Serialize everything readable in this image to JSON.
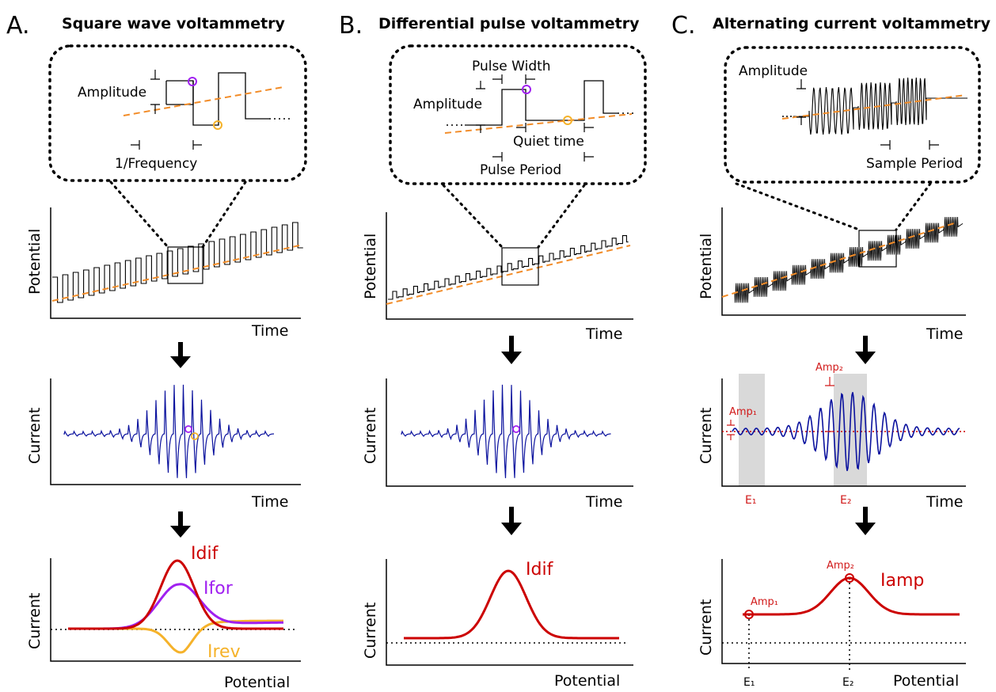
{
  "colors": {
    "axis": "#000000",
    "ramp": "#f28c28",
    "current_trace": "#0b129e",
    "i_dif": "#cc0000",
    "i_for": "#a020f0",
    "i_rev": "#f5b22a",
    "annotation": "#d11a1a",
    "shade": "#d9d9d9"
  },
  "panels": {
    "a": {
      "letter": "A.",
      "title": "Square wave voltammetry",
      "inset": {
        "amplitude": "Amplitude",
        "frequency": "1/Frequency"
      },
      "axes": {
        "top_y": "Potential",
        "top_x": "Time",
        "mid_y": "Current",
        "mid_x": "Time",
        "bot_y": "Current",
        "bot_x": "Potential"
      },
      "curve_labels": {
        "dif": "Idif",
        "for": "Ifor",
        "rev": "Irev"
      }
    },
    "b": {
      "letter": "B.",
      "title": "Differential pulse voltammetry",
      "inset": {
        "pulse_width": "Pulse Width",
        "amplitude": "Amplitude",
        "quiet_time": "Quiet time",
        "pulse_period": "Pulse Period"
      },
      "axes": {
        "top_y": "Potential",
        "top_x": "Time",
        "mid_y": "Current",
        "mid_x": "Time",
        "bot_y": "Current",
        "bot_x": "Potential"
      },
      "curve_labels": {
        "dif": "Idif"
      }
    },
    "c": {
      "letter": "C.",
      "title": "Alternating current voltammetry",
      "inset": {
        "amplitude": "Amplitude",
        "sample_period": "Sample Period"
      },
      "axes": {
        "top_y": "Potential",
        "top_x": "Time",
        "mid_y": "Current",
        "mid_x": "Time",
        "bot_y": "Current",
        "bot_x": "Potential"
      },
      "mid_labels": {
        "amp1": "Amp₁",
        "amp2": "Amp₂",
        "e1": "E₁",
        "e2": "E₂"
      },
      "bot_labels": {
        "amp1": "Amp₁",
        "amp2": "Amp₂",
        "iamp": "Iamp",
        "e1": "E₁",
        "e2": "E₂"
      }
    }
  }
}
